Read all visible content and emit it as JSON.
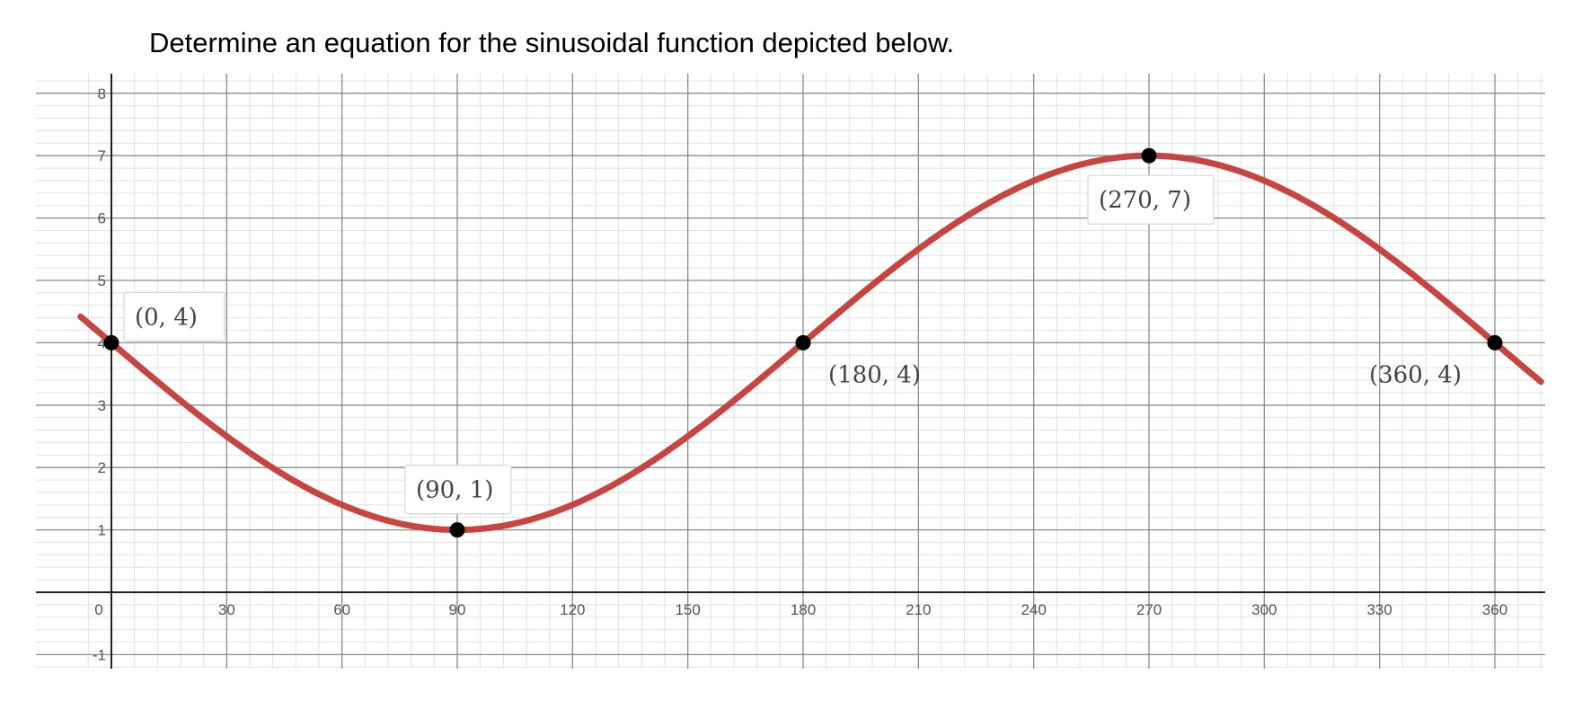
{
  "question": "Determine an equation for the sinusoidal function depicted below.",
  "chart_data": {
    "type": "line",
    "title": "",
    "xlabel": "",
    "ylabel": "",
    "xlim": [
      -8,
      372
    ],
    "ylim": [
      -1.2,
      8.3
    ],
    "grid": true,
    "x_ticks": [
      0,
      30,
      60,
      90,
      120,
      150,
      180,
      210,
      240,
      270,
      300,
      330,
      360
    ],
    "y_ticks": [
      -1,
      1,
      2,
      3,
      4,
      5,
      6,
      7,
      8
    ],
    "series": [
      {
        "function": "y = -3 sin(x°) + 4",
        "color": "#c74440",
        "x": [
          -8,
          0,
          30,
          60,
          90,
          120,
          150,
          180,
          210,
          240,
          270,
          300,
          330,
          360,
          372
        ],
        "y": [
          4.42,
          4,
          2.5,
          1.4,
          1,
          1.4,
          2.5,
          4,
          5.5,
          6.6,
          7,
          6.6,
          5.5,
          4,
          3.38
        ]
      }
    ],
    "points": [
      {
        "x": 0,
        "y": 4,
        "label": "(0, 4)",
        "label_pos": "above-right"
      },
      {
        "x": 90,
        "y": 1,
        "label": "(90, 1)",
        "label_pos": "above"
      },
      {
        "x": 180,
        "y": 4,
        "label": "(180, 4)",
        "label_pos": "below-right"
      },
      {
        "x": 270,
        "y": 7,
        "label": "(270, 7)",
        "label_pos": "below"
      },
      {
        "x": 360,
        "y": 4,
        "label": "(360, 4)",
        "label_pos": "below-left"
      }
    ]
  }
}
